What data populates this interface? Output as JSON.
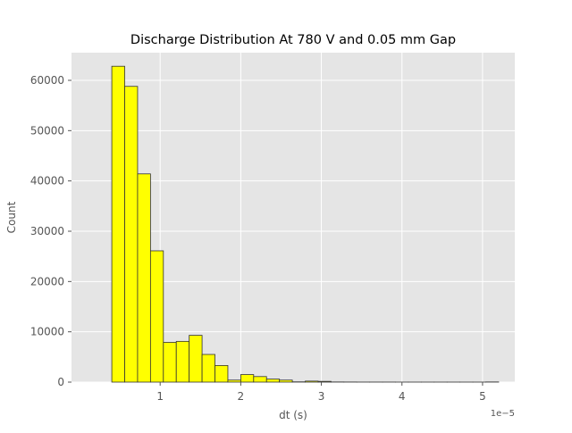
{
  "chart_data": {
    "type": "bar",
    "title": "Discharge Distribution At 780 V and 0.05 mm Gap",
    "xlabel": "dt (s)",
    "ylabel": "Count",
    "x_offset_label": "1e−5",
    "x_scale": 1e-05,
    "xlim": [
      -1e-06,
      5.4e-05
    ],
    "ylim": [
      0,
      65500
    ],
    "xticks": [
      1e-05,
      2e-05,
      3e-05,
      4e-05,
      5e-05
    ],
    "xtick_labels": [
      "1",
      "2",
      "3",
      "4",
      "5"
    ],
    "yticks": [
      0,
      10000,
      20000,
      30000,
      40000,
      50000,
      60000
    ],
    "ytick_labels": [
      "0",
      "10000",
      "20000",
      "30000",
      "40000",
      "50000",
      "60000"
    ],
    "grid": true,
    "bin_edges": [
      4e-06,
      5.6e-06,
      7.2e-06,
      8.8e-06,
      1.04e-05,
      1.2e-05,
      1.36e-05,
      1.52e-05,
      1.68e-05,
      1.84e-05,
      2e-05,
      2.16e-05,
      2.32e-05,
      2.48e-05,
      2.64e-05,
      2.8e-05,
      2.96e-05,
      3.12e-05,
      3.28e-05,
      3.44e-05,
      3.6e-05,
      3.76e-05,
      3.92e-05,
      4.08e-05,
      4.24e-05,
      4.4e-05,
      4.56e-05,
      4.72e-05,
      4.88e-05,
      5.04e-05,
      5.2e-05
    ],
    "counts": [
      62800,
      58800,
      41400,
      26100,
      7900,
      8100,
      9300,
      5500,
      3300,
      400,
      1500,
      1100,
      600,
      400,
      50,
      200,
      150,
      30,
      20,
      10,
      10,
      10,
      5,
      5,
      5,
      5,
      5,
      5,
      5,
      30
    ],
    "colors": {
      "bar_fill": "#ffff00",
      "bar_edge": "#333333",
      "plot_bg": "#e5e5e5",
      "grid": "#ffffff",
      "tick_text": "#555555",
      "label_text": "#555555",
      "title_text": "#000000"
    }
  }
}
